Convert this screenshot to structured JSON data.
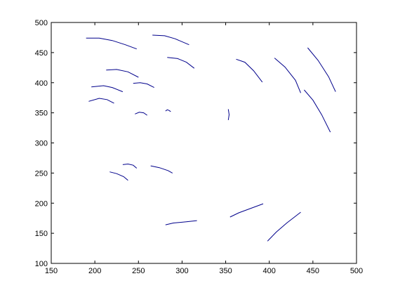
{
  "chart_data": {
    "type": "line",
    "title": "",
    "xlabel": "",
    "ylabel": "",
    "xlim": [
      150,
      500
    ],
    "ylim": [
      100,
      500
    ],
    "xticks": [
      "150",
      "200",
      "250",
      "300",
      "350",
      "400",
      "450",
      "500"
    ],
    "yticks": [
      "100",
      "150",
      "200",
      "250",
      "300",
      "350",
      "400",
      "450",
      "500"
    ],
    "grid": false,
    "colors": {
      "series": "#00008b",
      "axis": "#000000",
      "background": "#ffffff"
    },
    "series": [
      {
        "x": [
          190,
          205,
          220,
          235,
          248
        ],
        "y": [
          474,
          474,
          470,
          463,
          456
        ]
      },
      {
        "x": [
          266,
          280,
          292,
          308
        ],
        "y": [
          479,
          478,
          473,
          463
        ]
      },
      {
        "x": [
          213,
          225,
          238,
          250
        ],
        "y": [
          421,
          422,
          418,
          409
        ]
      },
      {
        "x": [
          283,
          295,
          305,
          314
        ],
        "y": [
          442,
          440,
          434,
          424
        ]
      },
      {
        "x": [
          196,
          210,
          220,
          232
        ],
        "y": [
          393,
          395,
          392,
          385
        ]
      },
      {
        "x": [
          244,
          252,
          260,
          268
        ],
        "y": [
          399,
          400,
          398,
          392
        ]
      },
      {
        "x": [
          193,
          205,
          214,
          222
        ],
        "y": [
          369,
          374,
          372,
          366
        ]
      },
      {
        "x": [
          246,
          251,
          256,
          260
        ],
        "y": [
          348,
          351,
          350,
          346
        ]
      },
      {
        "x": [
          281,
          283,
          285,
          287
        ],
        "y": [
          353,
          355,
          354,
          352
        ]
      },
      {
        "x": [
          353,
          354,
          353
        ],
        "y": [
          338,
          347,
          356
        ]
      },
      {
        "x": [
          362,
          372,
          382,
          392
        ],
        "y": [
          439,
          434,
          420,
          401
        ]
      },
      {
        "x": [
          406,
          418,
          430,
          436
        ],
        "y": [
          441,
          426,
          404,
          383
        ]
      },
      {
        "x": [
          444,
          456,
          468,
          476
        ],
        "y": [
          458,
          437,
          410,
          385
        ]
      },
      {
        "x": [
          440,
          450,
          460,
          470
        ],
        "y": [
          388,
          371,
          347,
          318
        ]
      },
      {
        "x": [
          217,
          225,
          233,
          238
        ],
        "y": [
          252,
          249,
          244,
          238
        ]
      },
      {
        "x": [
          232,
          238,
          244,
          248
        ],
        "y": [
          264,
          265,
          263,
          258
        ]
      },
      {
        "x": [
          264,
          274,
          284,
          289
        ],
        "y": [
          262,
          259,
          254,
          250
        ]
      },
      {
        "x": [
          281,
          290,
          305,
          317
        ],
        "y": [
          164,
          167,
          169,
          171
        ]
      },
      {
        "x": [
          355,
          365,
          378,
          393
        ],
        "y": [
          177,
          184,
          191,
          199
        ]
      },
      {
        "x": [
          398,
          408,
          420,
          436
        ],
        "y": [
          137,
          152,
          167,
          185
        ]
      }
    ]
  }
}
